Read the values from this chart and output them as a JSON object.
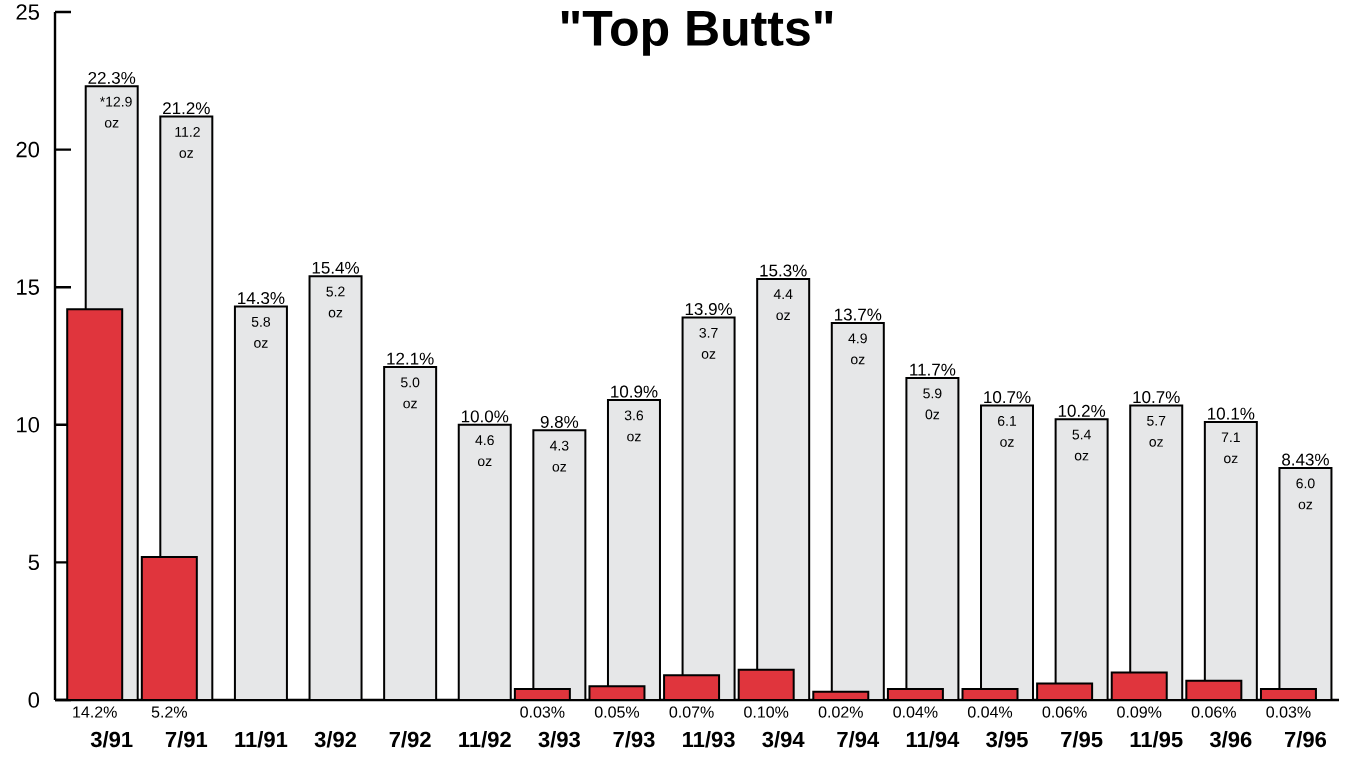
{
  "chart_data": {
    "type": "bar",
    "title": "\"Top Butts\"",
    "categories": [
      "3/91",
      "7/91",
      "11/91",
      "3/92",
      "7/92",
      "11/92",
      "3/93",
      "7/93",
      "11/93",
      "3/94",
      "7/94",
      "11/94",
      "3/95",
      "7/95",
      "11/95",
      "3/96",
      "7/96"
    ],
    "series": [
      {
        "color": "#e6e7e8",
        "values": [
          22.3,
          21.2,
          14.3,
          15.4,
          12.1,
          10.0,
          9.8,
          10.9,
          13.9,
          15.3,
          13.7,
          11.7,
          10.7,
          10.2,
          10.7,
          10.1,
          8.43
        ],
        "value_labels": [
          "22.3%",
          "21.2%",
          "14.3%",
          "15.4%",
          "12.1%",
          "10.0%",
          "9.8%",
          "10.9%",
          "13.9%",
          "15.3%",
          "13.7%",
          "11.7%",
          "10.7%",
          "10.2%",
          "10.7%",
          "10.1%",
          "8.43%"
        ]
      },
      {
        "color": "#e0353d",
        "values": [
          14.2,
          5.2,
          null,
          null,
          null,
          null,
          0.4,
          0.5,
          0.9,
          1.1,
          0.3,
          0.4,
          0.4,
          0.6,
          1.0,
          0.7,
          0.4
        ],
        "value_labels": [
          "14.2%",
          "5.2%",
          null,
          null,
          null,
          null,
          null,
          null,
          null,
          null,
          null,
          null,
          null,
          null,
          null,
          null,
          null
        ]
      }
    ],
    "ylim": [
      0,
      25
    ],
    "yticks": [
      0,
      5,
      10,
      15,
      20,
      25
    ],
    "grid": false,
    "annotations": [
      {
        "text": "*12.9 oz",
        "x": "3/91",
        "y": 22.3
      },
      {
        "text": "11.2 oz",
        "x": "7/91",
        "y": 21.2
      },
      {
        "text": "5.8 oz",
        "x": "11/91",
        "y": 14.3
      },
      {
        "text": "5.2 oz",
        "x": "3/92",
        "y": 15.4
      },
      {
        "text": "5.0 oz",
        "x": "7/92",
        "y": 12.1
      },
      {
        "text": "4.6 oz",
        "x": "11/92",
        "y": 10.0
      },
      {
        "text": "4.3 oz",
        "x": "3/93",
        "y": 9.8
      },
      {
        "text": "3.6 oz",
        "x": "7/93",
        "y": 10.9
      },
      {
        "text": "3.7 oz",
        "x": "11/93",
        "y": 13.9
      },
      {
        "text": "4.4 oz",
        "x": "3/94",
        "y": 15.3
      },
      {
        "text": "4.9 oz",
        "x": "7/94",
        "y": 13.7
      },
      {
        "text": "5.9 0z",
        "x": "11/94",
        "y": 11.7
      },
      {
        "text": "6.1 oz",
        "x": "3/95",
        "y": 10.7
      },
      {
        "text": "5.4 oz",
        "x": "7/95",
        "y": 10.2
      },
      {
        "text": "5.7 oz",
        "x": "11/95",
        "y": 10.7
      },
      {
        "text": "7.1 oz",
        "x": "3/96",
        "y": 10.1
      },
      {
        "text": "6.0 oz",
        "x": "7/96",
        "y": 8.43
      },
      "0.03%",
      "0.05%",
      "0.07%",
      "0.10%",
      "0.02%",
      "0.04%",
      "0.04%",
      "0.06%",
      "0.09%",
      "0.06%",
      "0.03%"
    ]
  }
}
